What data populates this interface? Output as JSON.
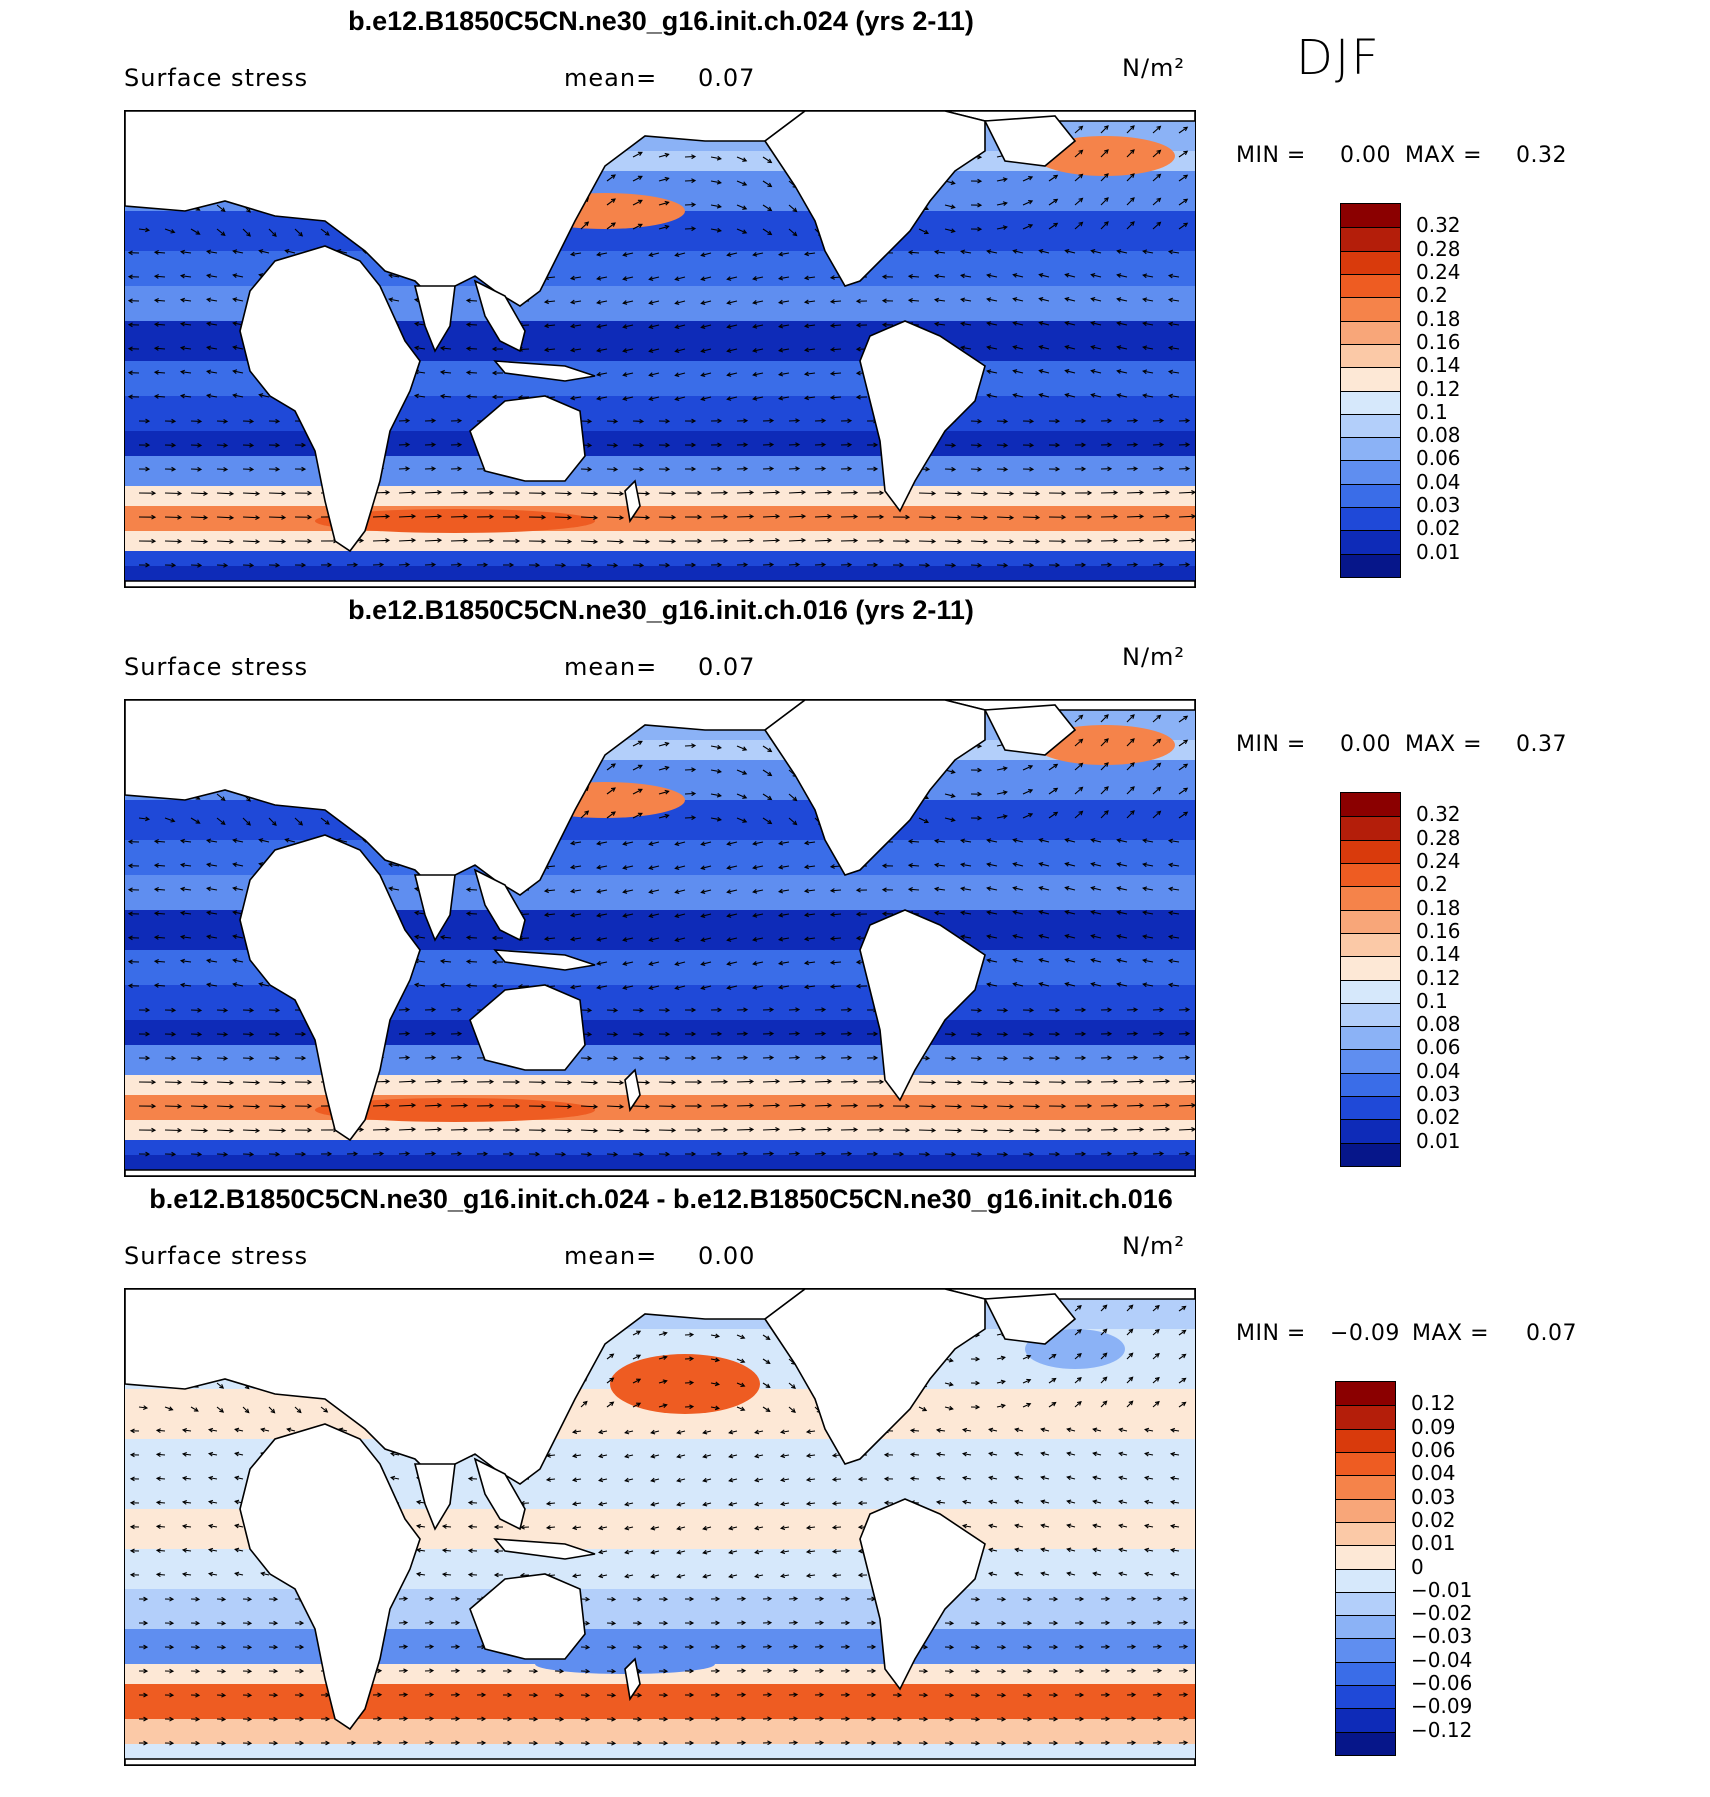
{
  "season": "DJF",
  "units_html": "N/m²",
  "panels": [
    {
      "title": "b.e12.B1850C5CN.ne30_g16.init.ch.024 (yrs 2-11)",
      "variable": "Surface stress",
      "mean_label": "mean=",
      "mean_value": "0.07",
      "units": "N/m²",
      "min_label": "MIN =",
      "min_value": "0.00",
      "max_label": "MAX =",
      "max_value": "0.32"
    },
    {
      "title": "b.e12.B1850C5CN.ne30_g16.init.ch.016 (yrs 2-11)",
      "variable": "Surface stress",
      "mean_label": "mean=",
      "mean_value": "0.07",
      "units": "N/m²",
      "min_label": "MIN =",
      "min_value": "0.00",
      "max_label": "MAX =",
      "max_value": "0.37"
    },
    {
      "title": "b.e12.B1850C5CN.ne30_g16.init.ch.024 - b.e12.B1850C5CN.ne30_g16.init.ch.016",
      "variable": "Surface stress",
      "mean_label": "mean=",
      "mean_value": "0.00",
      "units": "N/m²",
      "min_label": "MIN =",
      "min_value": "−0.09",
      "max_label": "MAX =",
      "max_value": "0.07"
    }
  ],
  "chart_data": [
    {
      "type": "heatmap",
      "title": "b.e12.B1850C5CN.ne30_g16.init.ch.024 (yrs 2-11)",
      "variable": "Surface stress",
      "units": "N/m²",
      "mean": 0.07,
      "min": 0.0,
      "max": 0.32,
      "colorbar_levels": [
        "0.32",
        "0.28",
        "0.24",
        "0.2",
        "0.18",
        "0.16",
        "0.14",
        "0.12",
        "0.1",
        "0.08",
        "0.06",
        "0.04",
        "0.03",
        "0.02",
        "0.01"
      ],
      "colorbar_colors": [
        "#8b0000",
        "#b41e0a",
        "#d93a0c",
        "#ee5c22",
        "#f5834a",
        "#f8a679",
        "#fbc9a7",
        "#fde8d6",
        "#d6e8fb",
        "#b3cffa",
        "#8bb2f6",
        "#5f8ef0",
        "#3a6de8",
        "#1f49d8",
        "#0e2bb8",
        "#06168a"
      ]
    },
    {
      "type": "heatmap",
      "title": "b.e12.B1850C5CN.ne30_g16.init.ch.016 (yrs 2-11)",
      "variable": "Surface stress",
      "units": "N/m²",
      "mean": 0.07,
      "min": 0.0,
      "max": 0.37,
      "colorbar_levels": [
        "0.32",
        "0.28",
        "0.24",
        "0.2",
        "0.18",
        "0.16",
        "0.14",
        "0.12",
        "0.1",
        "0.08",
        "0.06",
        "0.04",
        "0.03",
        "0.02",
        "0.01"
      ],
      "colorbar_colors": [
        "#8b0000",
        "#b41e0a",
        "#d93a0c",
        "#ee5c22",
        "#f5834a",
        "#f8a679",
        "#fbc9a7",
        "#fde8d6",
        "#d6e8fb",
        "#b3cffa",
        "#8bb2f6",
        "#5f8ef0",
        "#3a6de8",
        "#1f49d8",
        "#0e2bb8",
        "#06168a"
      ]
    },
    {
      "type": "heatmap",
      "title": "b.e12.B1850C5CN.ne30_g16.init.ch.024 - b.e12.B1850C5CN.ne30_g16.init.ch.016",
      "variable": "Surface stress",
      "units": "N/m²",
      "mean": 0.0,
      "min": -0.09,
      "max": 0.07,
      "colorbar_levels": [
        "0.12",
        "0.09",
        "0.06",
        "0.04",
        "0.03",
        "0.02",
        "0.01",
        "0",
        "−0.01",
        "−0.02",
        "−0.03",
        "−0.04",
        "−0.06",
        "−0.09",
        "−0.12"
      ],
      "colorbar_colors": [
        "#8b0000",
        "#b41e0a",
        "#d93a0c",
        "#ee5c22",
        "#f5834a",
        "#f8a679",
        "#fbc9a7",
        "#fde8d6",
        "#d6e8fb",
        "#b3cffa",
        "#8bb2f6",
        "#5f8ef0",
        "#3a6de8",
        "#1f49d8",
        "#0e2bb8",
        "#06168a"
      ]
    }
  ]
}
